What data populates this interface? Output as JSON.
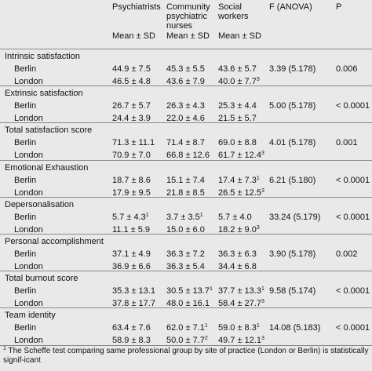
{
  "header": {
    "columns": [
      "Psychiatrists",
      "Community psychiatric nurses",
      "Social workers",
      "F (ANOVA)",
      "P"
    ],
    "subheader": [
      "Mean ± SD",
      "Mean ± SD",
      "Mean ± SD"
    ]
  },
  "sections": [
    {
      "title": "Intrinsic satisfaction",
      "rows": [
        {
          "site": "Berlin",
          "cells": [
            {
              "text": "44.9 ± 7.5"
            },
            {
              "text": "45.3 ± 5.5"
            },
            {
              "text": "43.6 ± 5.7"
            }
          ],
          "f": "3.39 (5.178)",
          "p": "0.006"
        },
        {
          "site": "London",
          "cells": [
            {
              "text": "46.5 ± 4.8"
            },
            {
              "text": "43.6 ± 7.9"
            },
            {
              "text": "40.0 ± 7.7",
              "sup": "3"
            }
          ]
        }
      ]
    },
    {
      "title": "Extrinsic satisfaction",
      "rows": [
        {
          "site": "Berlin",
          "cells": [
            {
              "text": "26.7 ± 5.7"
            },
            {
              "text": "26.3 ± 4.3"
            },
            {
              "text": "25.3 ± 4.4"
            }
          ],
          "f": "5.00 (5.178)",
          "p": "< 0.0001"
        },
        {
          "site": "London",
          "cells": [
            {
              "text": "24.4 ± 3.9"
            },
            {
              "text": "22.0 ± 4.6"
            },
            {
              "text": "21.5 ± 5.7"
            }
          ]
        }
      ]
    },
    {
      "title": "Total satisfaction score",
      "rows": [
        {
          "site": "Berlin",
          "cells": [
            {
              "text": "71.3 ± 11.1"
            },
            {
              "text": "71.4 ± 8.7"
            },
            {
              "text": "69.0 ± 8.8"
            }
          ],
          "f": "4.01 (5.178)",
          "p": "0.001"
        },
        {
          "site": "London",
          "cells": [
            {
              "text": "70.9 ± 7.0"
            },
            {
              "text": "66.8 ± 12.6"
            },
            {
              "text": "61.7 ± 12.4",
              "sup": "3"
            }
          ]
        }
      ]
    },
    {
      "title": "Emotional Exhaustion",
      "rows": [
        {
          "site": "Berlin",
          "cells": [
            {
              "text": "18.7 ± 8.6"
            },
            {
              "text": "15.1 ± 7.4"
            },
            {
              "text": "17.4 ± 7.3",
              "sup": "1"
            }
          ],
          "f": "6.21 (5.180)",
          "p": "< 0.0001"
        },
        {
          "site": "London",
          "cells": [
            {
              "text": "17.9 ± 9.5"
            },
            {
              "text": "21.8 ± 8.5"
            },
            {
              "text": "26.5 ± 12.5",
              "sup": "3"
            }
          ]
        }
      ]
    },
    {
      "title": "Depersonalisation",
      "rows": [
        {
          "site": "Berlin",
          "cells": [
            {
              "text": "5.7 ± 4.3",
              "sup": "1"
            },
            {
              "text": "3.7 ± 3.5",
              "sup": "1"
            },
            {
              "text": "5.7 ± 4.0"
            }
          ],
          "f": "33.24 (5.179)",
          "p": "< 0.0001"
        },
        {
          "site": "London",
          "cells": [
            {
              "text": "11.1 ± 5.9"
            },
            {
              "text": "15.0 ± 6.0"
            },
            {
              "text": "18.2 ± 9.0",
              "sup": "3"
            }
          ]
        }
      ]
    },
    {
      "title": "Personal accomplishment",
      "rows": [
        {
          "site": "Berlin",
          "cells": [
            {
              "text": "37.1 ± 4.9"
            },
            {
              "text": "36.3 ± 7.2"
            },
            {
              "text": "36.3 ± 6.3"
            }
          ],
          "f": "3.90 (5.178)",
          "p": "0.002"
        },
        {
          "site": "London",
          "cells": [
            {
              "text": "36.9 ± 6.6"
            },
            {
              "text": "36.3 ± 5.4"
            },
            {
              "text": "34.4 ± 6.8"
            }
          ]
        }
      ]
    },
    {
      "title": "Total burnout score",
      "rows": [
        {
          "site": "Berlin",
          "cells": [
            {
              "text": "35.3 ± 13.1"
            },
            {
              "text": "30.5 ± 13.7",
              "sup": "1"
            },
            {
              "text": "37.7 ± 13.3",
              "sup": "1"
            }
          ],
          "f": "9.58 (5.174)",
          "p": "< 0.0001"
        },
        {
          "site": "London",
          "cells": [
            {
              "text": "37.8 ± 17.7"
            },
            {
              "text": "48.0 ± 16.1"
            },
            {
              "text": "58.4 ± 27.7",
              "sup": "3"
            }
          ]
        }
      ]
    },
    {
      "title": "Team identity",
      "rows": [
        {
          "site": "Berlin",
          "cells": [
            {
              "text": "63.4 ± 7.6"
            },
            {
              "text": "62.0 ± 7.1",
              "sup": "1"
            },
            {
              "text": "59.0 ± 8.3",
              "sup": "1"
            }
          ],
          "f": "14.08 (5.183)",
          "p": "< 0.0001"
        },
        {
          "site": "London",
          "cells": [
            {
              "text": "58.9 ± 8.3"
            },
            {
              "text": "50.0 ± 7.7",
              "sup": "2"
            },
            {
              "text": "49.7 ± 12.1",
              "sup": "3"
            }
          ]
        }
      ]
    }
  ],
  "footnote": {
    "mark": "1",
    "text": "The Scheffe test comparing same professional group by site of practice (London or Berlin) is statistically signif-icant"
  }
}
